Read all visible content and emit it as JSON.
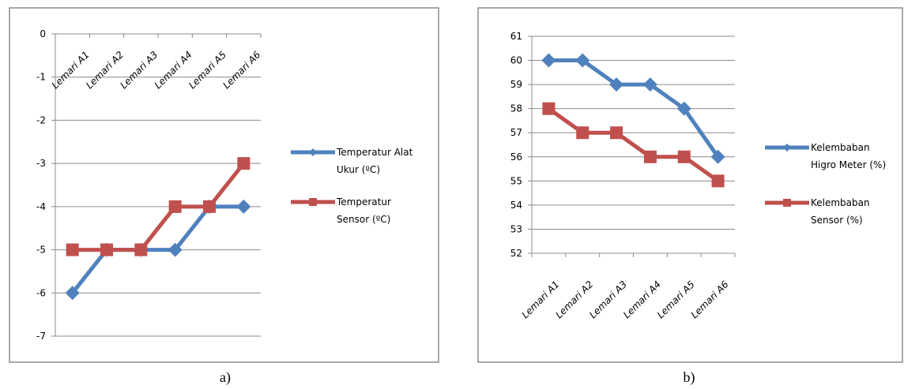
{
  "figure": {
    "captions": [
      "a)",
      "b)"
    ]
  },
  "chart_data": [
    {
      "type": "line",
      "categories": [
        "Lemari A1",
        "Lemari A2",
        "Lemari A3",
        "Lemari A4",
        "Lemari A5",
        "Lemari A6"
      ],
      "ylim": [
        -7,
        0
      ],
      "yticks": [
        "0",
        "-1",
        "-2",
        "-3",
        "-4",
        "-5",
        "-6",
        "-7"
      ],
      "grid": true,
      "legend": "right",
      "series": [
        {
          "name": "Temperatur Alat Ukur (ºC)",
          "name_lines": [
            "Temperatur Alat",
            "Ukur (ºC)"
          ],
          "values": [
            -6,
            -5,
            -5,
            -5,
            -4,
            -4
          ],
          "color": "#4F81BD",
          "marker": "diamond"
        },
        {
          "name": "Temperatur Sensor (ºC)",
          "name_lines": [
            "Temperatur",
            "Sensor (ºC)"
          ],
          "values": [
            -5,
            -5,
            -5,
            -4,
            -4,
            -3
          ],
          "color": "#C0504D",
          "marker": "square"
        }
      ]
    },
    {
      "type": "line",
      "categories": [
        "Lemari A1",
        "Lemari A2",
        "Lemari A3",
        "Lemari A4",
        "Lemari A5",
        "Lemari A6"
      ],
      "ylim": [
        52,
        61
      ],
      "yticks": [
        "52",
        "53",
        "54",
        "55",
        "56",
        "57",
        "58",
        "59",
        "60",
        "61"
      ],
      "grid": true,
      "legend": "right",
      "series": [
        {
          "name": "Kelembaban Higro Meter (%)",
          "name_lines": [
            "Kelembaban",
            "Higro Meter (%)"
          ],
          "values": [
            60,
            60,
            59,
            59,
            58,
            56
          ],
          "color": "#4F81BD",
          "marker": "diamond"
        },
        {
          "name": "Kelembaban Sensor (%)",
          "name_lines": [
            "Kelembaban",
            "Sensor (%)"
          ],
          "values": [
            58,
            57,
            57,
            56,
            56,
            55
          ],
          "color": "#C0504D",
          "marker": "square"
        }
      ]
    }
  ]
}
